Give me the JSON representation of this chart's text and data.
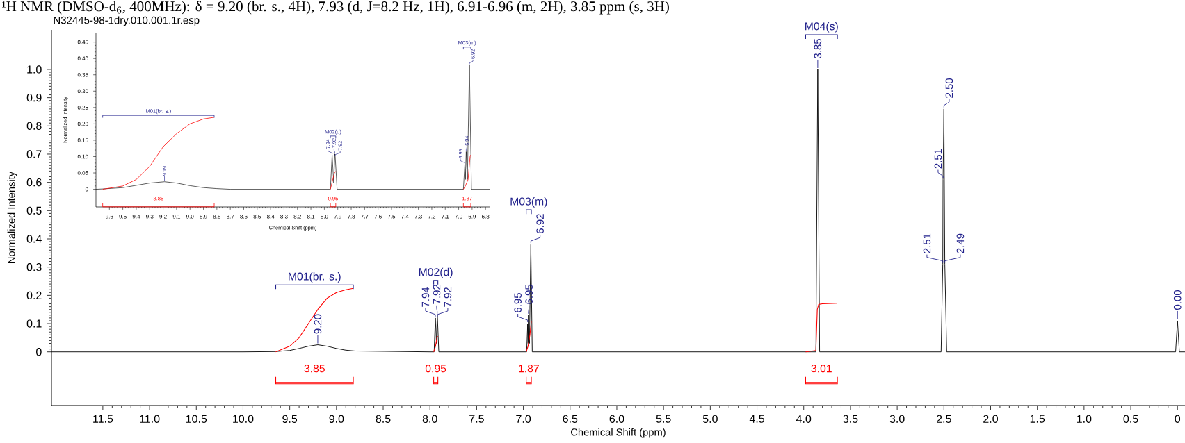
{
  "chart_data": [
    {
      "type": "line",
      "title": "¹H NMR (DMSO-d$_{6}$, 400MHz): δ = 9.20 (br. s., 4H), 7.93 (d, J=8.2 Hz, 1H), 6.91-6.96 (m, 2H), 3.85 ppm (s, 3H)",
      "subtitle": "N32445-98-1dry.010.001.1r.esp",
      "xlabel": "Chemical Shift (ppm)",
      "ylabel": "Normalized Intensity",
      "xlim": [
        12.05,
        -0.08
      ],
      "ylim": [
        -0.19,
        1.14
      ],
      "xticks": [
        11.5,
        {
          "value": 11.0,
          "label": "11.0"
        },
        10.5,
        {
          "value": 10.0,
          "label": "10.0"
        },
        9.5,
        {
          "value": 9.0,
          "label": "9.0"
        },
        8.5,
        {
          "value": 8.0,
          "label": "8.0"
        },
        7.5,
        {
          "value": 7.0,
          "label": "7.0"
        },
        6.5,
        {
          "value": 6.0,
          "label": "6.0"
        },
        5.5,
        {
          "value": 5.0,
          "label": "5.0"
        },
        4.5,
        {
          "value": 4.0,
          "label": "4.0"
        },
        3.5,
        {
          "value": 3.0,
          "label": "3.0"
        },
        2.5,
        {
          "value": 2.0,
          "label": "2.0"
        },
        1.5,
        {
          "value": 1.0,
          "label": "1.0"
        },
        0.5,
        0
      ],
      "yticks": [
        0,
        0.1,
        0.2,
        0.3,
        0.4,
        0.5,
        0.6,
        0.7,
        0.8,
        0.9,
        {
          "value": 1.0,
          "label": "1.0"
        }
      ],
      "series": [
        {
          "type": "line",
          "color": "#000000",
          "x": [
            12.05,
            11.0,
            10.0,
            9.65,
            9.5,
            9.4,
            9.3,
            9.2,
            9.1,
            9.0,
            8.9,
            8.8,
            8.0,
            7.955,
            7.942,
            7.93,
            7.922,
            7.919,
            7.905,
            7.0,
            6.965,
            6.954,
            6.95,
            6.946,
            6.935,
            6.92,
            6.905,
            4.0,
            3.87,
            3.85,
            3.83,
            2.53,
            2.512,
            2.509,
            2.5,
            2.49,
            2.47,
            0.02,
            0.0,
            -0.02,
            -0.08
          ],
          "values": [
            0,
            0,
            0,
            0.001,
            0.005,
            0.012,
            0.02,
            0.025,
            0.02,
            0.012,
            0.006,
            0.003,
            0,
            0,
            0.12,
            0.03,
            0.13,
            0.12,
            0,
            0,
            0,
            0.1,
            0.03,
            0.13,
            0.03,
            0.38,
            0,
            0,
            0,
            1.0,
            0,
            0,
            0.31,
            0.61,
            0.86,
            0.31,
            0,
            0,
            0.11,
            0,
            0
          ]
        },
        {
          "type": "line",
          "color": "#ff0000",
          "x": [
            9.65,
            9.5,
            9.4,
            9.3,
            9.2,
            9.1,
            9.0,
            8.9,
            8.82
          ],
          "values": [
            0,
            0.02,
            0.05,
            0.1,
            0.15,
            0.19,
            0.21,
            0.22,
            0.225
          ]
        },
        {
          "type": "line",
          "color": "#ff0000",
          "x": [
            7.96,
            7.94,
            7.925,
            7.915
          ],
          "values": [
            0,
            0.02,
            0.05,
            0.055
          ]
        },
        {
          "type": "line",
          "color": "#ff0000",
          "x": [
            6.97,
            6.95,
            6.93,
            6.915
          ],
          "values": [
            0,
            0.02,
            0.06,
            0.11
          ]
        },
        {
          "type": "line",
          "color": "#ff0000",
          "x": [
            3.98,
            3.87,
            3.855,
            3.84,
            3.8,
            3.64
          ],
          "values": [
            0,
            0.005,
            0.15,
            0.168,
            0.17,
            0.172
          ]
        }
      ],
      "annotations": [
        {
          "text": "9.20",
          "x": 9.2,
          "y": 0.025
        },
        {
          "text": "7.94",
          "x": 7.942,
          "y": 0.12
        },
        {
          "text": "7.92",
          "x": 7.922,
          "y": 0.13
        },
        {
          "text": "7.92",
          "x": 7.919,
          "y": 0.12
        },
        {
          "text": "6.95",
          "x": 6.954,
          "y": 0.1
        },
        {
          "text": "6.95",
          "x": 6.946,
          "y": 0.13
        },
        {
          "text": "6.92",
          "x": 6.92,
          "y": 0.38
        },
        {
          "text": "3.85",
          "x": 3.85,
          "y": 1.0
        },
        {
          "text": "2.51",
          "x": 2.512,
          "y": 0.31
        },
        {
          "text": "2.51",
          "x": 2.509,
          "y": 0.61
        },
        {
          "text": "2.50",
          "x": 2.5,
          "y": 0.86
        },
        {
          "text": "2.49",
          "x": 2.49,
          "y": 0.31
        },
        {
          "text": "0.00",
          "x": 0.0,
          "y": 0.11
        },
        "M01(br. s.)",
        "M02(d)",
        "M03(m)",
        "M04(s)",
        "3.85",
        "0.95",
        "1.87",
        "3.01"
      ]
    },
    {
      "type": "line",
      "xlabel": "Chemical Shift (ppm)",
      "ylabel": "Normalized Intensity",
      "xlim": [
        9.7,
        6.77
      ],
      "ylim": [
        -0.054,
        0.479
      ],
      "xticks": [
        9.6,
        9.5,
        9.4,
        9.3,
        9.2,
        9.1,
        {
          "value": 9.0,
          "label": "9.0"
        },
        8.9,
        8.8,
        8.7,
        8.6,
        8.5,
        8.4,
        8.3,
        8.2,
        8.1,
        {
          "value": 8.0,
          "label": "8.0"
        },
        7.9,
        7.8,
        7.7,
        7.6,
        7.5,
        7.4,
        7.3,
        7.2,
        7.1,
        {
          "value": 7.0,
          "label": "7.0"
        },
        6.9,
        6.8
      ],
      "yticks": [
        0,
        0.05,
        {
          "value": 0.1,
          "label": "0.10"
        },
        0.15,
        {
          "value": 0.2,
          "label": "0.20"
        },
        0.25,
        {
          "value": 0.3,
          "label": "0.30"
        },
        0.35,
        {
          "value": 0.4,
          "label": "0.40"
        },
        0.45
      ],
      "series": [
        {
          "type": "line",
          "color": "#000000",
          "x": [
            9.7,
            9.65,
            9.5,
            9.4,
            9.3,
            9.19,
            9.1,
            9.0,
            8.9,
            8.8,
            8.7,
            8.0,
            7.955,
            7.942,
            7.93,
            7.922,
            7.919,
            7.905,
            7.0,
            6.965,
            6.954,
            6.95,
            6.944,
            6.935,
            6.92,
            6.905,
            6.77
          ],
          "values": [
            0,
            0.001,
            0.005,
            0.012,
            0.019,
            0.023,
            0.019,
            0.011,
            0.005,
            0.002,
            0,
            0,
            0,
            0.105,
            0.02,
            0.108,
            0.1,
            0,
            0,
            0,
            0.075,
            0.03,
            0.115,
            0.03,
            0.38,
            0,
            0
          ]
        },
        {
          "type": "line",
          "color": "#ff0000",
          "x": [
            9.65,
            9.5,
            9.4,
            9.3,
            9.2,
            9.1,
            9.0,
            8.9,
            8.82
          ],
          "values": [
            0,
            0.01,
            0.03,
            0.07,
            0.13,
            0.17,
            0.2,
            0.215,
            0.22
          ]
        },
        {
          "type": "line",
          "color": "#ff0000",
          "x": [
            7.955,
            7.94,
            7.925,
            7.915
          ],
          "values": [
            0,
            0.025,
            0.05,
            0.055
          ]
        },
        {
          "type": "line",
          "color": "#ff0000",
          "x": [
            6.965,
            6.95,
            6.93,
            6.915,
            6.91
          ],
          "values": [
            0,
            0.01,
            0.03,
            0.1,
            0.105
          ]
        }
      ],
      "annotations": [
        {
          "text": "9.19",
          "x": 9.19,
          "y": 0.023
        },
        {
          "text": "7.94",
          "x": 7.942,
          "y": 0.105
        },
        {
          "text": "7.92",
          "x": 7.922,
          "y": 0.108
        },
        {
          "text": "7.92",
          "x": 7.919,
          "y": 0.1
        },
        {
          "text": "6.95",
          "x": 6.954,
          "y": 0.075
        },
        {
          "text": "6.94",
          "x": 6.944,
          "y": 0.115
        },
        {
          "text": "6.92",
          "x": 6.92,
          "y": 0.38
        },
        "M01(br. s.)",
        "M02(d)",
        "M03(m)",
        "3.85",
        "0.95",
        "1.87"
      ]
    }
  ]
}
